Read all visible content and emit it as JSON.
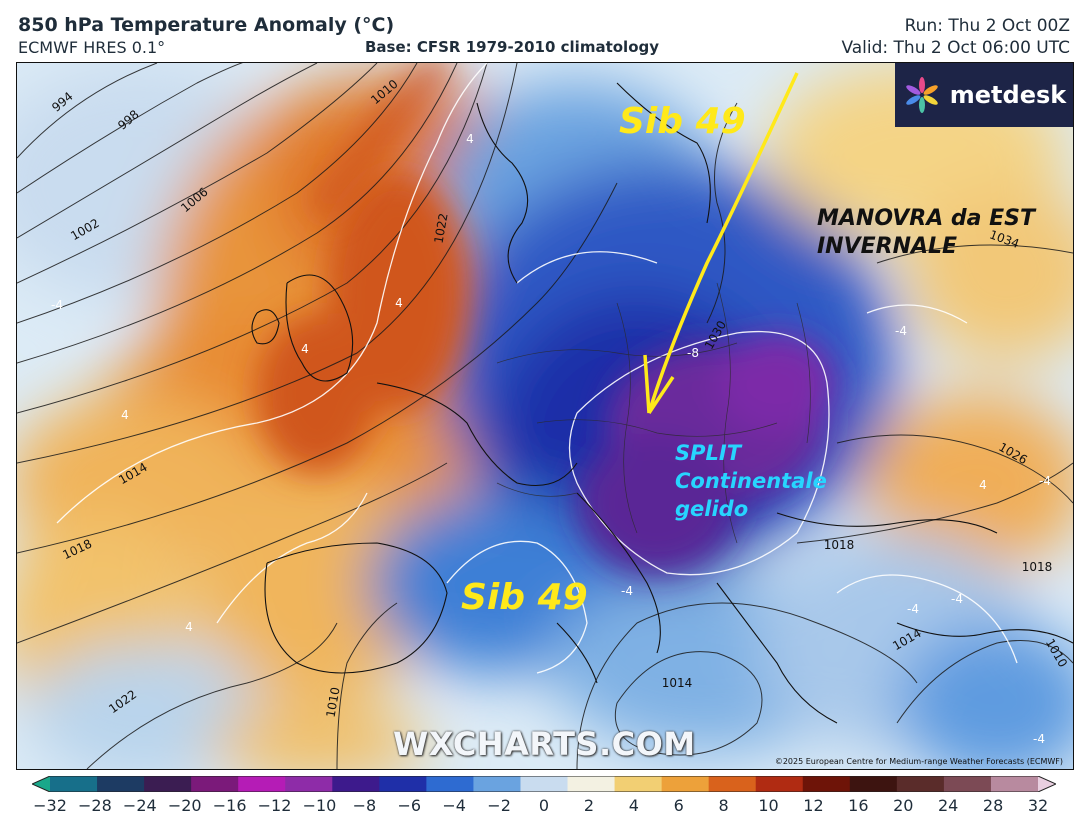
{
  "header": {
    "title": "850 hPa Temperature Anomaly (°C)",
    "model": "ECMWF HRES 0.1°",
    "base": "Base: CFSR 1979-2010 climatology",
    "run": "Run: Thu 2 Oct 00Z",
    "valid": "Valid: Thu 2 Oct 06:00 UTC"
  },
  "logo": {
    "text": "metdesk",
    "icon": "metdesk-flower-icon"
  },
  "annotations": {
    "sib_top": "Sib 49",
    "sib_bottom": "Sib 49",
    "manovra_line1": "MANOVRA da EST",
    "manovra_line2": "INVERNALE",
    "split_line1": "SPLIT",
    "split_line2": "Continentale",
    "split_line3": "gelido"
  },
  "watermark": "WXCHARTS.COM",
  "copyright": "©2025 European Centre for Medium-range Weather Forecasts (ECMWF)",
  "isobar_labels": [
    "994",
    "998",
    "1002",
    "1006",
    "1010",
    "1014",
    "1018",
    "1022",
    "1010",
    "1014",
    "1018",
    "1022",
    "1026",
    "1030",
    "1034",
    "1010",
    "1014",
    "1018"
  ],
  "anomaly_labels": [
    "4",
    "4",
    "4",
    "4",
    "4",
    "-4",
    "-4",
    "-4",
    "-4",
    "-4",
    "-8",
    "-4",
    "4",
    "-4"
  ],
  "colorbar": {
    "ticks": [
      "−32",
      "−28",
      "−24",
      "−20",
      "−16",
      "−12",
      "−10",
      "−8",
      "−6",
      "−4",
      "−2",
      "0",
      "2",
      "4",
      "6",
      "8",
      "10",
      "12",
      "16",
      "20",
      "24",
      "28",
      "32"
    ],
    "colors": [
      "#1aa88a",
      "#176f8a",
      "#1d3b63",
      "#3b1d52",
      "#7b1a7a",
      "#b51cb6",
      "#8e2ca8",
      "#3d1a8c",
      "#1f2fa8",
      "#2e6bd1",
      "#6aa3e0",
      "#c9dcef",
      "#f3f1e2",
      "#f2cf73",
      "#eda13a",
      "#d9621c",
      "#b02b12",
      "#6e1408",
      "#3d1410",
      "#5a2c2a",
      "#7c4a55",
      "#b88a9f",
      "#e9cfe0"
    ]
  }
}
